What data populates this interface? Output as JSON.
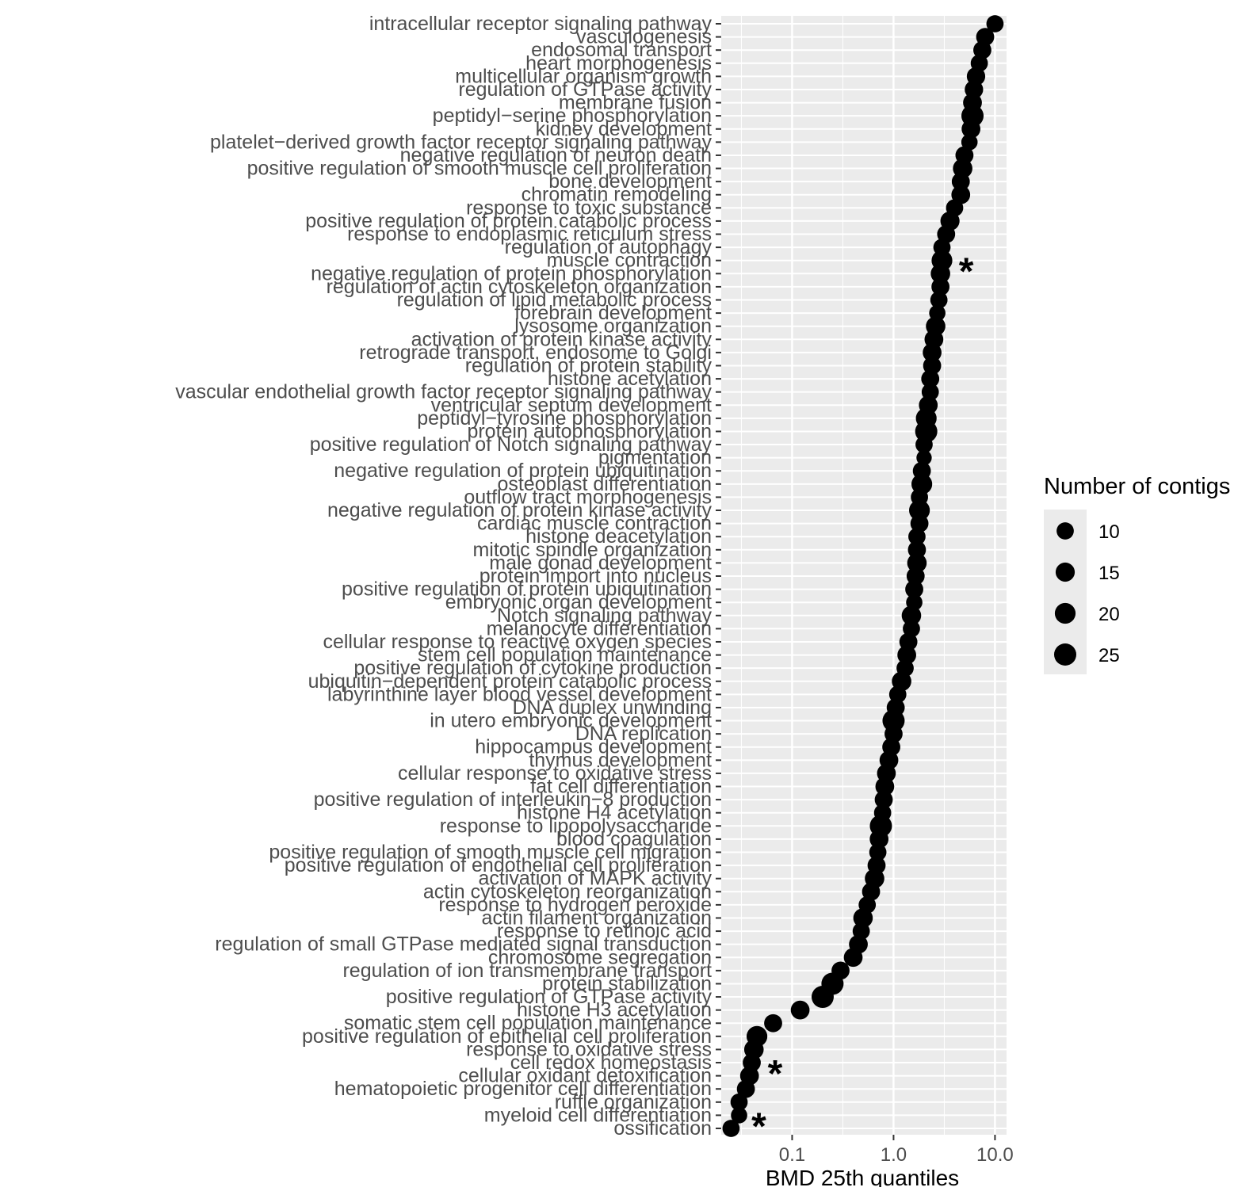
{
  "chart_data": {
    "type": "scatter",
    "xlabel": "BMD 25th quantiles",
    "x_scale": "log10",
    "xlim": [
      0.02,
      13
    ],
    "x_ticks": [
      "0.1",
      "1.0",
      "10.0"
    ],
    "x_tick_values": [
      0.1,
      1.0,
      10.0
    ],
    "ylabel": "",
    "grid": true,
    "panel_background": "#ebebeb",
    "point_color": "#000000",
    "categories": [
      "intracellular receptor signaling pathway",
      "vasculogenesis",
      "endosomal transport",
      "heart morphogenesis",
      "multicellular organism growth",
      "regulation of GTPase activity",
      "membrane fusion",
      "peptidyl−serine phosphorylation",
      "kidney development",
      "platelet−derived growth factor receptor signaling pathway",
      "negative regulation of neuron death",
      "positive regulation of smooth muscle cell proliferation",
      "bone development",
      "chromatin remodeling",
      "response to toxic substance",
      "positive regulation of protein catabolic process",
      "response to endoplasmic reticulum stress",
      "regulation of autophagy",
      "muscle contraction",
      "negative regulation of protein phosphorylation",
      "regulation of actin cytoskeleton organization",
      "regulation of lipid metabolic process",
      "forebrain development",
      "lysosome organization",
      "activation of protein kinase activity",
      "retrograde transport, endosome to Golgi",
      "regulation of protein stability",
      "histone acetylation",
      "vascular endothelial growth factor receptor signaling pathway",
      "ventricular septum development",
      "peptidyl−tyrosine phosphorylation",
      "protein autophosphorylation",
      "positive regulation of Notch signaling pathway",
      "pigmentation",
      "negative regulation of protein ubiquitination",
      "osteoblast differentiation",
      "outflow tract morphogenesis",
      "negative regulation of protein kinase activity",
      "cardiac muscle contraction",
      "histone deacetylation",
      "mitotic spindle organization",
      "male gonad development",
      "protein import into nucleus",
      "positive regulation of protein ubiquitination",
      "embryonic organ development",
      "Notch signaling pathway",
      "melanocyte differentiation",
      "cellular response to reactive oxygen species",
      "stem cell population maintenance",
      "positive regulation of cytokine production",
      "ubiquitin−dependent protein catabolic process",
      "labyrinthine layer blood vessel development",
      "DNA duplex unwinding",
      "in utero embryonic development",
      "DNA replication",
      "hippocampus development",
      "thymus development",
      "cellular response to oxidative stress",
      "fat cell differentiation",
      "positive regulation of interleukin−8 production",
      "histone H4 acetylation",
      "response to lipopolysaccharide",
      "blood coagulation",
      "positive regulation of smooth muscle cell migration",
      "positive regulation of endothelial cell proliferation",
      "activation of MAPK activity",
      "actin cytoskeleton reorganization",
      "response to hydrogen peroxide",
      "actin filament organization",
      "response to retinoic acid",
      "regulation of small GTPase mediated signal transduction",
      "chromosome segregation",
      "regulation of ion transmembrane transport",
      "protein stabilization",
      "positive regulation of GTPase activity",
      "histone H3 acetylation",
      "somatic stem cell population maintenance",
      "positive regulation of epithelial cell proliferation",
      "response to oxidative stress",
      "cell redox homeostasis",
      "cellular oxidant detoxification",
      "hematopoietic progenitor cell differentiation",
      "ruffle organization",
      "myeloid cell differentiation",
      "ossification"
    ],
    "x": [
      10.0,
      8.0,
      7.5,
      7.0,
      6.5,
      6.2,
      6.0,
      6.0,
      5.8,
      5.6,
      5.0,
      4.8,
      4.6,
      4.6,
      4.0,
      3.6,
      3.3,
      3.0,
      3.0,
      2.9,
      2.9,
      2.8,
      2.7,
      2.6,
      2.5,
      2.4,
      2.4,
      2.3,
      2.3,
      2.2,
      2.1,
      2.1,
      2.0,
      2.0,
      1.9,
      1.9,
      1.8,
      1.8,
      1.8,
      1.7,
      1.7,
      1.7,
      1.65,
      1.6,
      1.6,
      1.5,
      1.5,
      1.4,
      1.35,
      1.3,
      1.2,
      1.1,
      1.05,
      1.0,
      1.0,
      0.95,
      0.9,
      0.85,
      0.82,
      0.8,
      0.78,
      0.75,
      0.72,
      0.7,
      0.68,
      0.65,
      0.6,
      0.55,
      0.5,
      0.48,
      0.45,
      0.4,
      0.3,
      0.25,
      0.2,
      0.12,
      0.065,
      0.045,
      0.042,
      0.04,
      0.038,
      0.035,
      0.03,
      0.03,
      0.025
    ],
    "size": [
      10,
      12,
      12,
      10,
      13,
      13,
      14,
      25,
      14,
      8,
      12,
      16,
      12,
      14,
      10,
      15,
      12,
      10,
      20,
      16,
      12,
      10,
      8,
      16,
      14,
      14,
      12,
      12,
      10,
      14,
      20,
      25,
      10,
      6,
      12,
      20,
      10,
      20,
      12,
      10,
      12,
      16,
      12,
      12,
      8,
      16,
      10,
      12,
      14,
      10,
      16,
      10,
      12,
      25,
      12,
      12,
      14,
      14,
      14,
      12,
      10,
      25,
      14,
      10,
      12,
      16,
      12,
      10,
      16,
      10,
      14,
      14,
      12,
      25,
      25,
      14,
      12,
      20,
      16,
      12,
      14,
      12,
      10,
      8,
      10
    ],
    "size_legend": {
      "title": "Number of contigs",
      "breaks": [
        "10",
        "15",
        "20",
        "25"
      ],
      "values": [
        10,
        15,
        20,
        25
      ]
    },
    "annotations": [
      {
        "text": "*",
        "category": "muscle contraction",
        "x": 5.2
      },
      {
        "text": "*",
        "category": "cell redox homeostasis",
        "x": 0.068
      },
      {
        "text": "*",
        "category": "myeloid cell differentiation",
        "x": 0.047
      }
    ]
  }
}
